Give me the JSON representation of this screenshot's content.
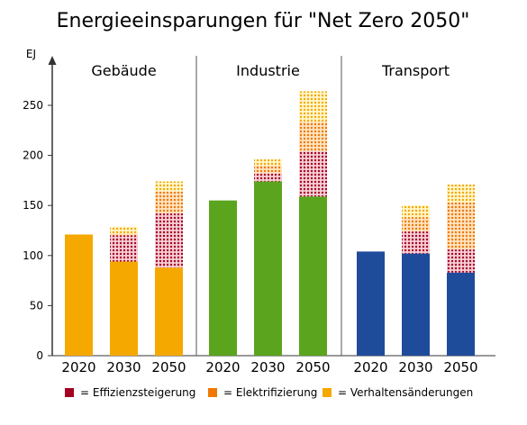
{
  "chart_data": {
    "type": "bar",
    "stacked": true,
    "title": "Energieeinsparungen für \"Net Zero 2050\"",
    "ylabel": "EJ",
    "ylim": [
      0,
      280
    ],
    "yticks": [
      0,
      50,
      100,
      150,
      200,
      250
    ],
    "groups": [
      {
        "name": "Gebäude",
        "base_color": "#F5A800",
        "categories": [
          "2020",
          "2030",
          "2050"
        ],
        "base": [
          121,
          94,
          88
        ],
        "effizienz": [
          0,
          26,
          54
        ],
        "elektrifizierung": [
          0,
          2,
          22
        ],
        "verhalten": [
          0,
          7,
          10
        ]
      },
      {
        "name": "Industrie",
        "base_color": "#5BA51E",
        "categories": [
          "2020",
          "2030",
          "2050"
        ],
        "base": [
          155,
          174,
          159
        ],
        "effizienz": [
          0,
          8,
          45
        ],
        "elektrifizierung": [
          0,
          8,
          30
        ],
        "verhalten": [
          0,
          6,
          30
        ]
      },
      {
        "name": "Transport",
        "base_color": "#1F4B9B",
        "categories": [
          "2020",
          "2030",
          "2050"
        ],
        "base": [
          104,
          102,
          83
        ],
        "effizienz": [
          0,
          22,
          23
        ],
        "elektrifizierung": [
          0,
          14,
          47
        ],
        "verhalten": [
          0,
          12,
          18
        ]
      }
    ],
    "legend": [
      {
        "label": "= Effizienzsteigerung",
        "color": "#A50021"
      },
      {
        "label": "= Elektrifizierung",
        "color": "#F07800"
      },
      {
        "label": "= Verhaltensänderungen",
        "color": "#F5A800"
      }
    ],
    "legend_position": "bottom",
    "grid": false
  }
}
